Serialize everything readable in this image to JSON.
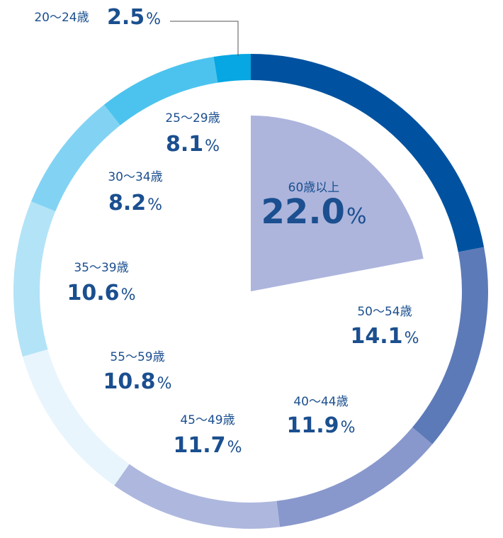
{
  "chart_data": {
    "type": "pie",
    "unit": "%",
    "series": [
      {
        "name": "60歳以上",
        "value": 22.0,
        "value_label": "22.0",
        "color": "#adb5dd"
      },
      {
        "name": "50～54歳",
        "value": 14.1,
        "value_label": "14.1",
        "color": "#5d7ab8"
      },
      {
        "name": "40～44歳",
        "value": 11.9,
        "value_label": "11.9",
        "color": "#8898cc"
      },
      {
        "name": "45～49歳",
        "value": 11.7,
        "value_label": "11.7",
        "color": "#aeb8de"
      },
      {
        "name": "55～59歳",
        "value": 10.8,
        "value_label": "10.8",
        "color": "#e8f5fc"
      },
      {
        "name": "35～39歳",
        "value": 10.6,
        "value_label": "10.6",
        "color": "#b3e3f7"
      },
      {
        "name": "30～34歳",
        "value": 8.2,
        "value_label": "8.2",
        "color": "#82d3f3"
      },
      {
        "name": "25～29歳",
        "value": 8.1,
        "value_label": "8.1",
        "color": "#4cc3ee"
      },
      {
        "name": "20～24歳",
        "value": 2.5,
        "value_label": "2.5",
        "color": "#06a7e2"
      }
    ],
    "outer_ring": {
      "values": [
        22.0,
        14.1,
        11.9,
        11.7,
        10.8,
        10.6,
        8.2,
        8.1,
        2.5
      ],
      "colors": [
        "#0052a0",
        "#5d7ab8",
        "#8898cc",
        "#aeb8de",
        "#e8f5fc",
        "#b3e3f7",
        "#82d3f3",
        "#4cc3ee",
        "#06a7e2"
      ]
    },
    "highlighted_sector": {
      "name": "60歳以上",
      "value": 22.0,
      "color": "#adb5dd"
    },
    "text_color": "#1b4f8f"
  }
}
